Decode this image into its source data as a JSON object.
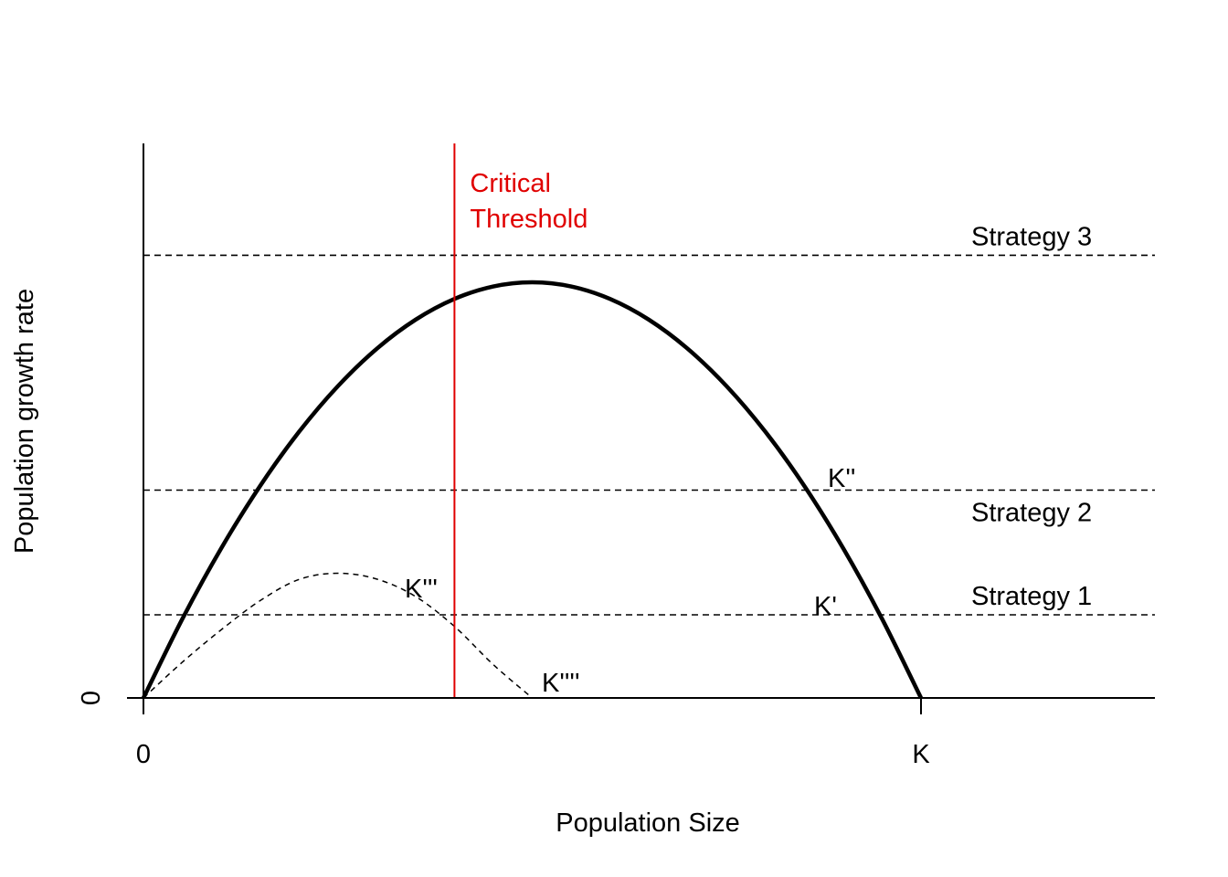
{
  "chart_data": {
    "type": "line",
    "title": "",
    "xlabel": "Population Size",
    "ylabel": "Population growth rate",
    "x_ticks": [
      {
        "value": 0,
        "label": "0"
      },
      {
        "value": 1,
        "label": "K"
      }
    ],
    "y_ticks": [
      {
        "value": 0,
        "label": "0"
      }
    ],
    "xlim": [
      0,
      1.3
    ],
    "ylim": [
      0,
      1.3
    ],
    "series": [
      {
        "style": "solid-thick",
        "color": "#000000",
        "x": [
          0,
          0.05,
          0.1,
          0.15,
          0.2,
          0.25,
          0.3,
          0.35,
          0.4,
          0.45,
          0.5,
          0.55,
          0.6,
          0.65,
          0.7,
          0.75,
          0.8,
          0.85,
          0.9,
          0.95,
          1.0
        ],
        "y": [
          0,
          0.19,
          0.36,
          0.51,
          0.64,
          0.75,
          0.84,
          0.91,
          0.96,
          0.99,
          1.0,
          0.99,
          0.96,
          0.91,
          0.84,
          0.75,
          0.64,
          0.51,
          0.36,
          0.19,
          0
        ]
      },
      {
        "style": "dashed-thin",
        "color": "#000000",
        "x": [
          0,
          0.05,
          0.1,
          0.15,
          0.2,
          0.25,
          0.3,
          0.35,
          0.4,
          0.45,
          0.5
        ],
        "y": [
          0,
          0.086,
          0.164,
          0.234,
          0.285,
          0.3,
          0.286,
          0.244,
          0.172,
          0.08,
          0
        ]
      }
    ],
    "hlines": [
      {
        "y": 0.2,
        "style": "dashed",
        "label": "Strategy 1"
      },
      {
        "y": 0.5,
        "style": "dashed",
        "label": "Strategy 2"
      },
      {
        "y": 1.065,
        "style": "dashed",
        "label": "Strategy 3"
      }
    ],
    "vlines": [
      {
        "x": 0.4,
        "color": "#e00000",
        "label_line1": "Critical",
        "label_line2": "Threshold"
      }
    ],
    "annotations": [
      {
        "text": "K'",
        "x": 0.86,
        "y": 0.2
      },
      {
        "text": "K''",
        "x": 0.88,
        "y": 0.52
      },
      {
        "text": "K'''",
        "x": 0.33,
        "y": 0.25
      },
      {
        "text": "K''''",
        "x": 0.51,
        "y": 0.03
      }
    ]
  }
}
